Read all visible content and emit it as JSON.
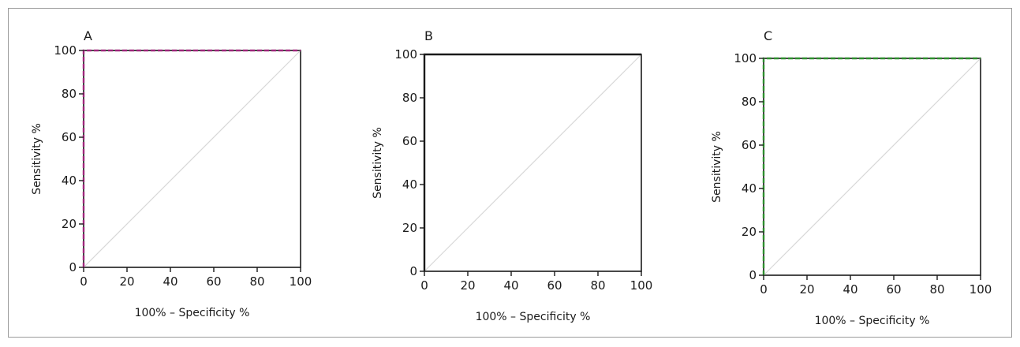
{
  "chart_data": [
    {
      "type": "line",
      "panel_label": "A",
      "xlabel": "100% – Specificity %",
      "ylabel": "Sensitivity %",
      "xlim": [
        0,
        100
      ],
      "ylim": [
        0,
        100
      ],
      "xticks": [
        0,
        20,
        40,
        60,
        80,
        100
      ],
      "yticks": [
        0,
        20,
        40,
        60,
        80,
        100
      ],
      "grid": false,
      "series": [
        {
          "color": "#a0287d",
          "dash": "dashed",
          "x": [
            0,
            0,
            0,
            100
          ],
          "y": [
            0,
            96,
            100,
            100
          ]
        },
        {
          "color": "#d8d8d8",
          "dash": "solid",
          "x": [
            0,
            100
          ],
          "y": [
            0,
            100
          ]
        }
      ]
    },
    {
      "type": "line",
      "panel_label": "B",
      "xlabel": "100% – Specificity %",
      "ylabel": "Sensitivity %",
      "xlim": [
        0,
        100
      ],
      "ylim": [
        0,
        100
      ],
      "xticks": [
        0,
        20,
        40,
        60,
        80,
        100
      ],
      "yticks": [
        0,
        20,
        40,
        60,
        80,
        100
      ],
      "grid": false,
      "series": [
        {
          "color": "#1a1a1a",
          "dash": "solid",
          "x": [
            0,
            0,
            100
          ],
          "y": [
            0,
            100,
            100
          ]
        },
        {
          "color": "#d8d8d8",
          "dash": "solid",
          "x": [
            0,
            100
          ],
          "y": [
            0,
            100
          ]
        }
      ]
    },
    {
      "type": "line",
      "panel_label": "C",
      "xlabel": "100% – Specificity %",
      "ylabel": "Sensitivity %",
      "xlim": [
        0,
        100
      ],
      "ylim": [
        0,
        100
      ],
      "xticks": [
        0,
        20,
        40,
        60,
        80,
        100
      ],
      "yticks": [
        0,
        20,
        40,
        60,
        80,
        100
      ],
      "grid": false,
      "series": [
        {
          "color": "#2f8f2f",
          "dash": "dashed",
          "x": [
            0,
            0,
            100
          ],
          "y": [
            0,
            100,
            100
          ]
        },
        {
          "color": "#d8d8d8",
          "dash": "solid",
          "x": [
            0,
            100
          ],
          "y": [
            0,
            100
          ]
        }
      ]
    }
  ]
}
